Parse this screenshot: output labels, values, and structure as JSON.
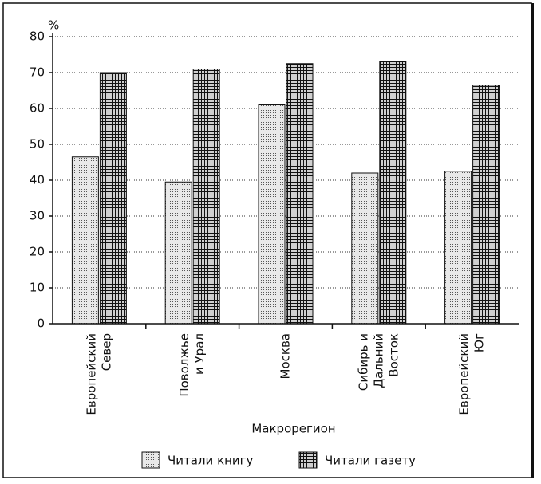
{
  "chart_data": {
    "type": "bar",
    "y_label": "%",
    "x_label": "Макрорегион",
    "categories": [
      [
        "Европейский",
        "Север"
      ],
      [
        "Поволжье",
        "и Урал"
      ],
      [
        "Москва"
      ],
      [
        "Сибирь и",
        "Дальний",
        "Восток"
      ],
      [
        "Европейский",
        "Юг"
      ]
    ],
    "series": [
      {
        "name": "Читали книгу",
        "color": "#e8e8e8",
        "values": [
          46.5,
          39.5,
          61,
          42,
          42.5
        ]
      },
      {
        "name": "Читали газету",
        "color": "#d0d0d0",
        "values": [
          70,
          71,
          72.5,
          73,
          66.5
        ]
      }
    ],
    "ylim": [
      0,
      80
    ],
    "yticks": [
      0,
      10,
      20,
      30,
      40,
      50,
      60,
      70,
      80
    ],
    "grid": true
  }
}
